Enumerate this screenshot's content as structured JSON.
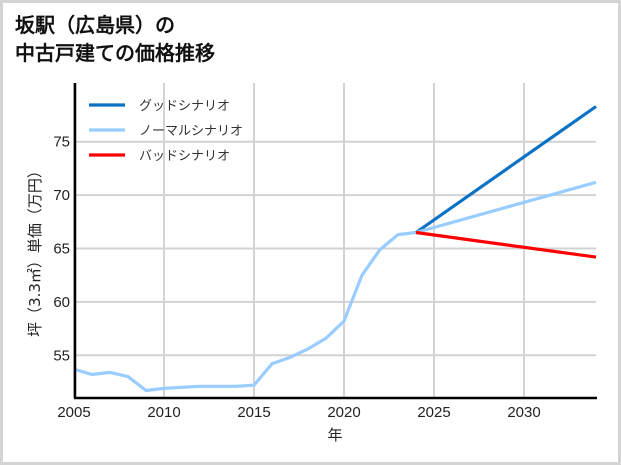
{
  "title": {
    "line1": "坂駅（広島県）の",
    "line2": "中古戸建ての価格推移"
  },
  "axes": {
    "xlabel": "年",
    "ylabel": "坪（3.3㎡）単価（万円）",
    "xticks": [
      "2005",
      "2010",
      "2015",
      "2020",
      "2025",
      "2030"
    ],
    "yticks": [
      "55",
      "60",
      "65",
      "70",
      "75"
    ]
  },
  "legend": {
    "items": [
      {
        "label": "グッドシナリオ",
        "color": "#0a72c4"
      },
      {
        "label": "ノーマルシナリオ",
        "color": "#99ccff"
      },
      {
        "label": "バッドシナリオ",
        "color": "#ff0000"
      }
    ]
  },
  "chart_data": {
    "type": "line",
    "title": "坂駅（広島県）の中古戸建ての価格推移",
    "xlabel": "年",
    "ylabel": "坪（3.3㎡）単価（万円）",
    "xlim": [
      2005,
      2034
    ],
    "ylim": [
      51,
      80.5
    ],
    "grid": true,
    "legend_position": "upper left",
    "x_ticks": [
      2005,
      2010,
      2015,
      2020,
      2025,
      2030
    ],
    "y_ticks": [
      55,
      60,
      65,
      70,
      75
    ],
    "series": [
      {
        "name": "ノーマルシナリオ (実績)",
        "color": "#99ccff",
        "x": [
          2005,
          2006,
          2007,
          2008,
          2009,
          2010,
          2011,
          2012,
          2013,
          2014,
          2015,
          2016,
          2017,
          2018,
          2019,
          2020,
          2021,
          2022,
          2023,
          2024
        ],
        "values": [
          53.7,
          53.2,
          53.4,
          53.0,
          51.7,
          51.9,
          52.0,
          52.1,
          52.1,
          52.1,
          52.2,
          54.2,
          54.8,
          55.6,
          56.6,
          58.2,
          62.5,
          64.9,
          66.3,
          66.5
        ]
      },
      {
        "name": "グッドシナリオ",
        "color": "#0a72c4",
        "x": [
          2024,
          2034
        ],
        "values": [
          66.5,
          78.3
        ]
      },
      {
        "name": "ノーマルシナリオ",
        "color": "#99ccff",
        "x": [
          2024,
          2034
        ],
        "values": [
          66.5,
          71.2
        ]
      },
      {
        "name": "バッドシナリオ",
        "color": "#ff0000",
        "x": [
          2024,
          2034
        ],
        "values": [
          66.5,
          64.2
        ]
      }
    ]
  }
}
